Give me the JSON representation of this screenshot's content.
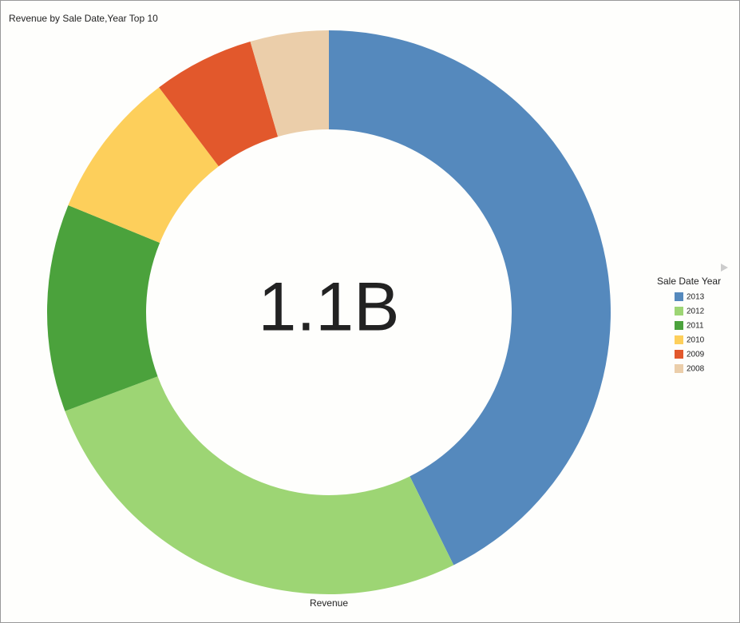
{
  "chart_data": {
    "type": "donut",
    "title": "Revenue by Sale Date,Year Top 10",
    "center_label": "1.1B",
    "measure_label": "Revenue",
    "legend_title": "Sale Date Year",
    "categories": [
      "2013",
      "2012",
      "2011",
      "2010",
      "2009",
      "2008"
    ],
    "values": [
      42.7,
      26.6,
      11.9,
      8.5,
      5.8,
      4.5
    ],
    "colors": [
      "#5589bd",
      "#9dd574",
      "#4ba23c",
      "#fdcf5b",
      "#e2582c",
      "#ebceaa"
    ],
    "legend": "right"
  }
}
